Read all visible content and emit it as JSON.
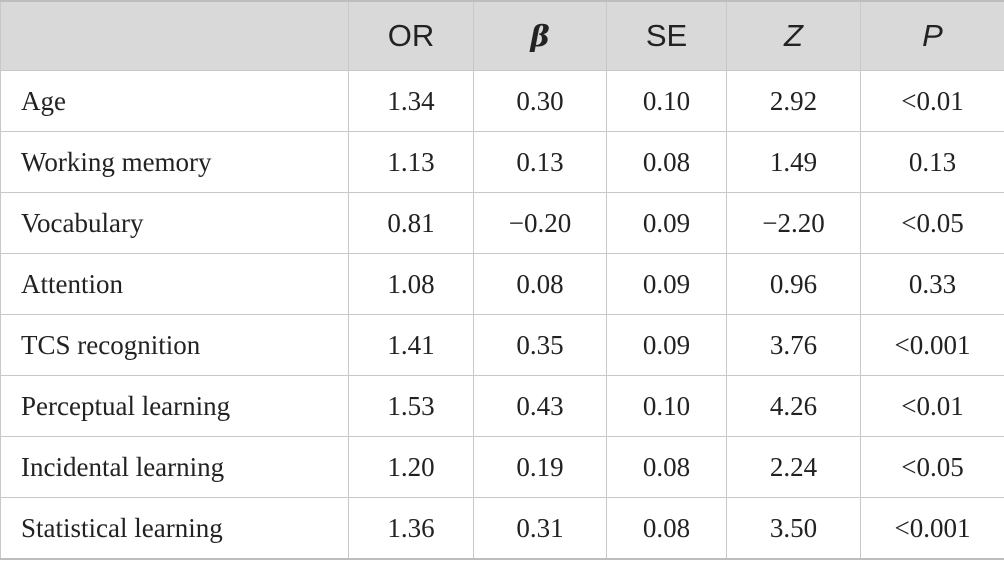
{
  "table": {
    "headers": [
      "",
      "OR",
      "β",
      "SE",
      "Z",
      "P"
    ],
    "rows": [
      [
        "Age",
        "1.34",
        "0.30",
        "0.10",
        "2.92",
        "<0.01"
      ],
      [
        "Working memory",
        "1.13",
        "0.13",
        "0.08",
        "1.49",
        "0.13"
      ],
      [
        "Vocabulary",
        "0.81",
        "−0.20",
        "0.09",
        "−2.20",
        "<0.05"
      ],
      [
        "Attention",
        "1.08",
        "0.08",
        "0.09",
        "0.96",
        "0.33"
      ],
      [
        "TCS recognition",
        "1.41",
        "0.35",
        "0.09",
        "3.76",
        "<0.001"
      ],
      [
        "Perceptual learning",
        "1.53",
        "0.43",
        "0.10",
        "4.26",
        "<0.01"
      ],
      [
        "Incidental learning",
        "1.20",
        "0.19",
        "0.08",
        "2.24",
        "<0.05"
      ],
      [
        "Statistical learning",
        "1.36",
        "0.31",
        "0.08",
        "3.50",
        "<0.001"
      ]
    ]
  },
  "colors": {
    "header_bg": "#d9d9d9",
    "grid": "#c8c8c8",
    "text": "#222222"
  }
}
